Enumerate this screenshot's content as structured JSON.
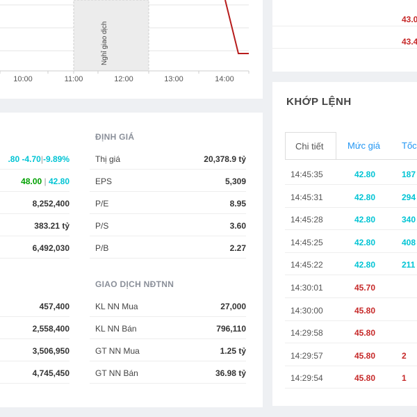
{
  "chart": {
    "x_ticks": [
      "10:00",
      "11:00",
      "12:00",
      "13:00",
      "14:00"
    ],
    "break_label": "Nghỉ giao dịch",
    "line_color": "#b71c1c"
  },
  "price_fragment": {
    "values": [
      "43.0",
      "43.4"
    ]
  },
  "stats": {
    "left_rows": [
      {
        "label": "",
        "parts": [
          {
            "text": ".80 -4.70",
            "color": "cyan"
          },
          {
            "text": "|",
            "color": "gray"
          },
          {
            "text": "-9.89%",
            "color": "cyan"
          }
        ]
      },
      {
        "label": "",
        "parts": [
          {
            "text": "48.00",
            "color": "green"
          },
          {
            "text": " | ",
            "color": "gray"
          },
          {
            "text": "42.80",
            "color": "cyan"
          }
        ]
      },
      {
        "label": "",
        "value": "8,252,400"
      },
      {
        "label": "",
        "value": "383.21 tỷ"
      },
      {
        "label": "",
        "value": "6,492,030"
      }
    ],
    "left_rows_2": [
      {
        "value": "457,400"
      },
      {
        "value": "2,558,400"
      },
      {
        "value": "3,506,950"
      },
      {
        "value": "4,745,450"
      }
    ],
    "valuation": {
      "heading": "ĐỊNH GIÁ",
      "rows": [
        {
          "label": "Thị giá",
          "value": "20,378.9 tỷ"
        },
        {
          "label": "EPS",
          "value": "5,309"
        },
        {
          "label": "P/E",
          "value": "8.95"
        },
        {
          "label": "P/S",
          "value": "3.60"
        },
        {
          "label": "P/B",
          "value": "2.27"
        }
      ]
    },
    "foreign": {
      "heading": "GIAO DỊCH NĐTNN",
      "rows": [
        {
          "label": "KL NN Mua",
          "value": "27,000"
        },
        {
          "label": "KL NN Bán",
          "value": "796,110"
        },
        {
          "label": "GT NN Mua",
          "value": "1.25 tỷ"
        },
        {
          "label": "GT NN Bán",
          "value": "36.98 tỷ"
        }
      ]
    }
  },
  "matching": {
    "title": "KHỚP LỆNH",
    "tabs": [
      "Chi tiết",
      "Mức giá",
      "Tốc"
    ],
    "trades": [
      {
        "time": "14:45:35",
        "price": "42.80",
        "vol": "187",
        "color": "cyan"
      },
      {
        "time": "14:45:31",
        "price": "42.80",
        "vol": "294",
        "color": "cyan"
      },
      {
        "time": "14:45:28",
        "price": "42.80",
        "vol": "340",
        "color": "cyan"
      },
      {
        "time": "14:45:25",
        "price": "42.80",
        "vol": "408",
        "color": "cyan"
      },
      {
        "time": "14:45:22",
        "price": "42.80",
        "vol": "211",
        "color": "cyan"
      },
      {
        "time": "14:30:01",
        "price": "45.70",
        "vol": "",
        "color": "red"
      },
      {
        "time": "14:30:00",
        "price": "45.80",
        "vol": "",
        "color": "red"
      },
      {
        "time": "14:29:58",
        "price": "45.80",
        "vol": "",
        "color": "red"
      },
      {
        "time": "14:29:57",
        "price": "45.80",
        "vol": "2",
        "color": "red"
      },
      {
        "time": "14:29:54",
        "price": "45.80",
        "vol": "1",
        "color": "red"
      }
    ]
  }
}
